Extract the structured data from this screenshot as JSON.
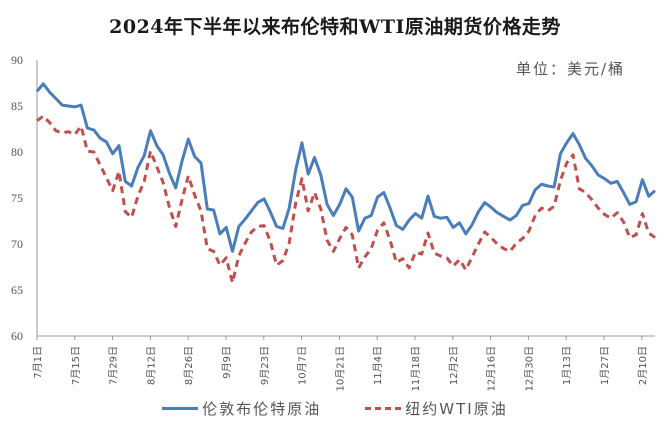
{
  "chart_data": {
    "type": "line",
    "title": "2024年下半年以来布伦特和WTI原油期货价格走势",
    "unit_label": "单位：美元/桶",
    "xlabel": "",
    "ylabel": "",
    "ylim": [
      60,
      90
    ],
    "yticks": [
      60,
      65,
      70,
      75,
      80,
      85,
      90
    ],
    "grid": false,
    "legend_position": "bottom",
    "x_tick_labels": [
      "7月1日",
      "7月15日",
      "7月29日",
      "8月12日",
      "8月26日",
      "9月9日",
      "9月23日",
      "10月7日",
      "10月21日",
      "11月4日",
      "11月18日",
      "12月2日",
      "12月16日",
      "12月30日",
      "1月13日",
      "1月27日",
      "2月10日"
    ],
    "x": [
      "7/1",
      "7/3",
      "7/5",
      "7/8",
      "7/10",
      "7/12",
      "7/15",
      "7/17",
      "7/19",
      "7/22",
      "7/24",
      "7/26",
      "7/29",
      "7/31",
      "8/2",
      "8/5",
      "8/7",
      "8/9",
      "8/12",
      "8/14",
      "8/16",
      "8/19",
      "8/21",
      "8/23",
      "8/26",
      "8/28",
      "8/30",
      "9/2",
      "9/4",
      "9/6",
      "9/9",
      "9/11",
      "9/13",
      "9/16",
      "9/18",
      "9/20",
      "9/23",
      "9/25",
      "9/27",
      "9/30",
      "10/2",
      "10/4",
      "10/7",
      "10/9",
      "10/11",
      "10/14",
      "10/16",
      "10/18",
      "10/21",
      "10/23",
      "10/25",
      "10/28",
      "10/30",
      "11/1",
      "11/4",
      "11/6",
      "11/8",
      "11/11",
      "11/13",
      "11/15",
      "11/18",
      "11/20",
      "11/22",
      "11/25",
      "11/27",
      "11/29",
      "12/2",
      "12/4",
      "12/6",
      "12/9",
      "12/11",
      "12/13",
      "12/16",
      "12/18",
      "12/20",
      "12/23",
      "12/25",
      "12/27",
      "12/30",
      "1/1",
      "1/3",
      "1/6",
      "1/8",
      "1/10",
      "1/13",
      "1/15",
      "1/17",
      "1/20",
      "1/22",
      "1/24",
      "1/27",
      "1/29",
      "1/31",
      "2/3",
      "2/5",
      "2/7",
      "2/10",
      "2/12",
      "2/14"
    ],
    "series": [
      {
        "name": "伦敦布伦特原油",
        "color": "#4a7ebb",
        "style": "solid",
        "values": [
          86.6,
          87.4,
          86.5,
          85.8,
          85.1,
          85.0,
          84.9,
          85.1,
          82.6,
          82.4,
          81.5,
          81.1,
          79.8,
          80.7,
          76.8,
          76.3,
          78.3,
          79.6,
          82.3,
          80.7,
          79.7,
          77.7,
          76.1,
          79.0,
          81.4,
          79.5,
          78.8,
          73.8,
          73.7,
          71.1,
          71.8,
          69.2,
          71.9,
          72.7,
          73.6,
          74.5,
          74.9,
          73.5,
          71.9,
          71.7,
          73.9,
          78.0,
          81.0,
          77.6,
          79.4,
          77.5,
          74.3,
          73.1,
          74.3,
          76.0,
          75.1,
          71.4,
          72.8,
          73.1,
          75.1,
          75.6,
          73.9,
          72.0,
          71.6,
          72.6,
          73.3,
          72.8,
          75.2,
          73.0,
          72.8,
          72.9,
          71.8,
          72.3,
          71.1,
          72.1,
          73.5,
          74.5,
          74.0,
          73.4,
          73.0,
          72.6,
          73.1,
          74.2,
          74.4,
          75.9,
          76.5,
          76.3,
          76.2,
          79.8,
          81.0,
          82.0,
          80.8,
          79.3,
          78.5,
          77.5,
          77.1,
          76.6,
          76.8,
          75.6,
          74.3,
          74.6,
          77.0,
          75.2,
          75.8
        ],
        "end_value": 75.8
      },
      {
        "name": "纽约WTI原油",
        "color": "#c0504d",
        "style": "dashed",
        "values": [
          83.4,
          83.9,
          83.2,
          82.3,
          82.1,
          82.2,
          81.9,
          82.8,
          80.1,
          80.0,
          78.6,
          77.2,
          75.8,
          77.9,
          73.5,
          72.9,
          75.2,
          76.8,
          80.1,
          78.4,
          76.7,
          74.0,
          71.9,
          74.8,
          77.4,
          75.3,
          73.6,
          69.5,
          69.2,
          67.7,
          68.5,
          65.8,
          68.7,
          70.1,
          71.3,
          71.9,
          72.0,
          70.3,
          67.7,
          68.2,
          70.1,
          74.4,
          77.1,
          73.6,
          75.6,
          73.8,
          70.4,
          69.2,
          70.6,
          71.8,
          71.0,
          67.4,
          68.6,
          69.5,
          71.5,
          72.3,
          70.4,
          68.0,
          68.4,
          67.4,
          69.1,
          68.9,
          71.2,
          69.0,
          68.7,
          68.5,
          67.6,
          68.3,
          67.2,
          68.6,
          70.0,
          71.3,
          70.7,
          70.0,
          69.5,
          69.2,
          70.1,
          70.6,
          71.4,
          73.1,
          73.9,
          73.6,
          74.1,
          76.9,
          78.8,
          79.7,
          76.0,
          75.6,
          74.8,
          73.9,
          73.2,
          72.8,
          73.4,
          72.4,
          70.7,
          71.0,
          73.3,
          71.2,
          70.7
        ],
        "end_value": 70.7
      }
    ]
  }
}
